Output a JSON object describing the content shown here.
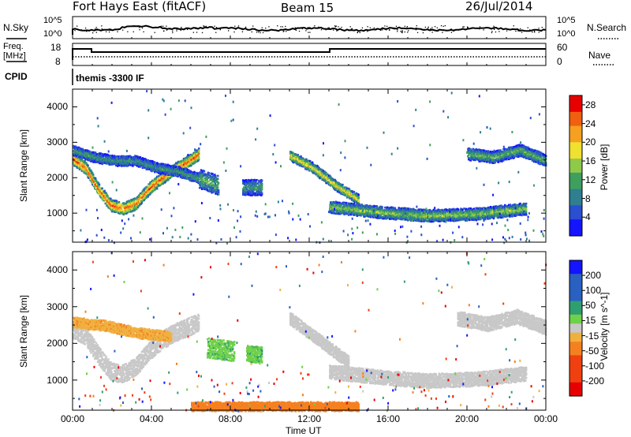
{
  "header": {
    "title": "Fort Hays East (fitACF)",
    "beam": "Beam 15",
    "date": "26/Jul/2014"
  },
  "top_panels": {
    "nsky_label": "N.Sky",
    "nsearch_label": "N.Search",
    "freq_label_1": "Freq.",
    "freq_label_2": "[MHz]",
    "nave_label": "Nave",
    "cpid_label": "CPID",
    "cpid_value": "themis -3300 IF",
    "noise_ticks_left": [
      "10^5",
      "10^0"
    ],
    "noise_ticks_right": [
      "10^5",
      "10^0"
    ],
    "freq_ticks": [
      "18",
      "8"
    ],
    "nave_ticks": [
      "60",
      "0"
    ]
  },
  "colors": {
    "power_scale": [
      "#1414ff",
      "#2a4fd0",
      "#2f7f90",
      "#3f9f5f",
      "#8fc94a",
      "#f0e030",
      "#f5a020",
      "#f06010",
      "#e80000"
    ],
    "velocity_scale": [
      "#e80000",
      "#f04010",
      "#f58020",
      "#f0b040",
      "#c8c8c8",
      "#c8c8c8",
      "#6fd04a",
      "#2f9f70",
      "#2a60c0",
      "#1414ff"
    ],
    "ground_scatter": "#c0c0c0"
  },
  "chart_data": [
    {
      "type": "heatmap",
      "panel": "power",
      "xlabel": "",
      "ylabel": "Slant Range [km]",
      "x_range_hours": [
        0,
        24
      ],
      "ylim": [
        180,
        4500
      ],
      "yticks": [
        1000,
        2000,
        3000,
        4000
      ],
      "colorbar": {
        "label": "Power [dB]",
        "ticks": [
          4,
          8,
          12,
          16,
          20,
          24,
          28
        ],
        "range": [
          0,
          30
        ]
      },
      "echo_regions": [
        {
          "t": [
            0.0,
            6.4
          ],
          "center_km": [
            2550,
            2300,
            1700,
            1250,
            1150,
            1300,
            1700,
            2000,
            2250,
            2450,
            2700
          ],
          "width_km": 300,
          "power_db": 24
        },
        {
          "t": [
            0.0,
            6.4
          ],
          "center_km": [
            2800,
            2600,
            2500,
            2500,
            2300,
            2200,
            2000
          ],
          "width_km": 250,
          "power_db": 10
        },
        {
          "t": [
            6.4,
            7.4
          ],
          "center_km": [
            2000,
            1800
          ],
          "width_km": 500,
          "power_db": 12
        },
        {
          "t": [
            8.6,
            9.6
          ],
          "center_km": [
            1750,
            1750
          ],
          "width_km": 400,
          "power_db": 10
        },
        {
          "t": [
            11.0,
            14.5
          ],
          "center_km": [
            2650,
            2300,
            1800,
            1400
          ],
          "width_km": 250,
          "power_db": 18
        },
        {
          "t": [
            13.0,
            23.0
          ],
          "center_km": [
            1200,
            1050,
            950,
            1000,
            1150
          ],
          "width_km": 300,
          "power_db": 14
        },
        {
          "t": [
            20.0,
            24.0
          ],
          "center_km": [
            2700,
            2600,
            2800,
            2500
          ],
          "width_km": 300,
          "power_db": 12
        }
      ]
    },
    {
      "type": "heatmap",
      "panel": "velocity",
      "xlabel": "Time UT",
      "ylabel": "Slant Range [km]",
      "x_range_hours": [
        0,
        24
      ],
      "xticks": [
        "00:00",
        "04:00",
        "08:00",
        "12:00",
        "16:00",
        "20:00",
        "00:00"
      ],
      "ylim": [
        180,
        4500
      ],
      "yticks": [
        1000,
        2000,
        3000,
        4000
      ],
      "colorbar": {
        "label": "Velocity [m s^-1]",
        "ticks": [
          200,
          100,
          50,
          15,
          -15,
          -50,
          -100,
          -200
        ],
        "range": [
          -250,
          250
        ]
      },
      "echo_regions": [
        {
          "t": [
            0.0,
            6.4
          ],
          "center_km": [
            2400,
            2200,
            1700,
            1250,
            1200,
            1400,
            1800,
            2100,
            2300,
            2450,
            2600
          ],
          "width_km": 450,
          "velocity": 0
        },
        {
          "t": [
            0.0,
            5.0
          ],
          "center_km": [
            2600,
            2500,
            2300,
            2200
          ],
          "width_km": 250,
          "velocity": -35
        },
        {
          "t": [
            6.8,
            8.2
          ],
          "center_km": [
            1900,
            1800
          ],
          "width_km": 500,
          "velocity": 35
        },
        {
          "t": [
            8.8,
            9.6
          ],
          "center_km": [
            1750,
            1700
          ],
          "width_km": 400,
          "velocity": 35
        },
        {
          "t": [
            11.0,
            14.0
          ],
          "center_km": [
            2700,
            2300,
            1900,
            1500
          ],
          "width_km": 300,
          "velocity": 0
        },
        {
          "t": [
            13.0,
            23.0
          ],
          "center_km": [
            1250,
            1100,
            1000,
            1050,
            1200
          ],
          "width_km": 350,
          "velocity": 0
        },
        {
          "t": [
            19.5,
            24.0
          ],
          "center_km": [
            2700,
            2550,
            2750,
            2450
          ],
          "width_km": 350,
          "velocity": 0
        },
        {
          "t": [
            6.0,
            14.5
          ],
          "center_km": [
            300,
            300
          ],
          "width_km": 220,
          "velocity": -70
        }
      ]
    }
  ]
}
